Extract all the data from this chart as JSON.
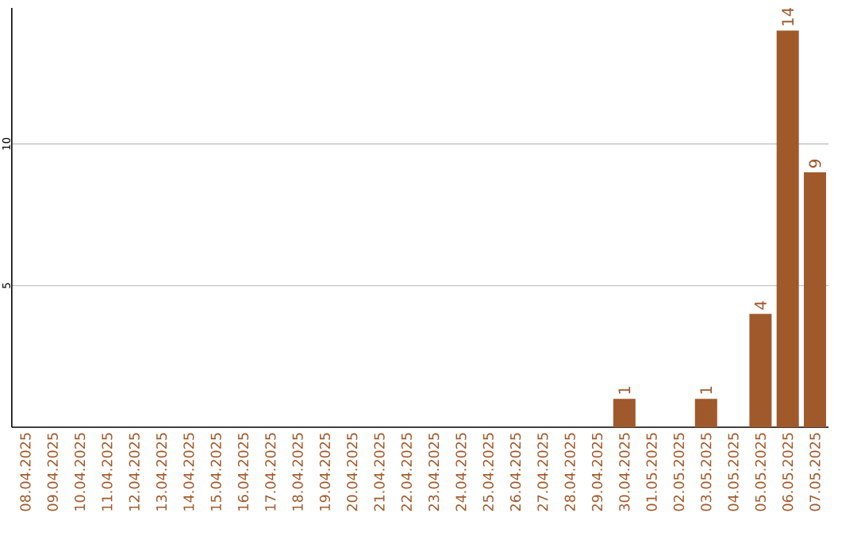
{
  "chart_data": {
    "type": "bar",
    "categories": [
      "08.04.2025",
      "09.04.2025",
      "10.04.2025",
      "11.04.2025",
      "12.04.2025",
      "13.04.2025",
      "14.04.2025",
      "15.04.2025",
      "16.04.2025",
      "17.04.2025",
      "18.04.2025",
      "19.04.2025",
      "20.04.2025",
      "21.04.2025",
      "22.04.2025",
      "23.04.2025",
      "24.04.2025",
      "25.04.2025",
      "26.04.2025",
      "27.04.2025",
      "28.04.2025",
      "29.04.2025",
      "30.04.2025",
      "01.05.2025",
      "02.05.2025",
      "03.05.2025",
      "04.05.2025",
      "05.05.2025",
      "06.05.2025",
      "07.05.2025"
    ],
    "values": [
      0,
      0,
      0,
      0,
      0,
      0,
      0,
      0,
      0,
      0,
      0,
      0,
      0,
      0,
      0,
      0,
      0,
      0,
      0,
      0,
      0,
      0,
      1,
      0,
      0,
      1,
      0,
      4,
      14,
      9
    ],
    "value_labels": [
      null,
      null,
      null,
      null,
      null,
      null,
      null,
      null,
      null,
      null,
      null,
      null,
      null,
      null,
      null,
      null,
      null,
      null,
      null,
      null,
      null,
      null,
      "1",
      null,
      null,
      "1",
      null,
      "4",
      "14",
      "9"
    ],
    "color": "#a0592b",
    "ylim": [
      0,
      14.8
    ],
    "yticks": [
      5,
      10
    ],
    "grid": "y"
  }
}
